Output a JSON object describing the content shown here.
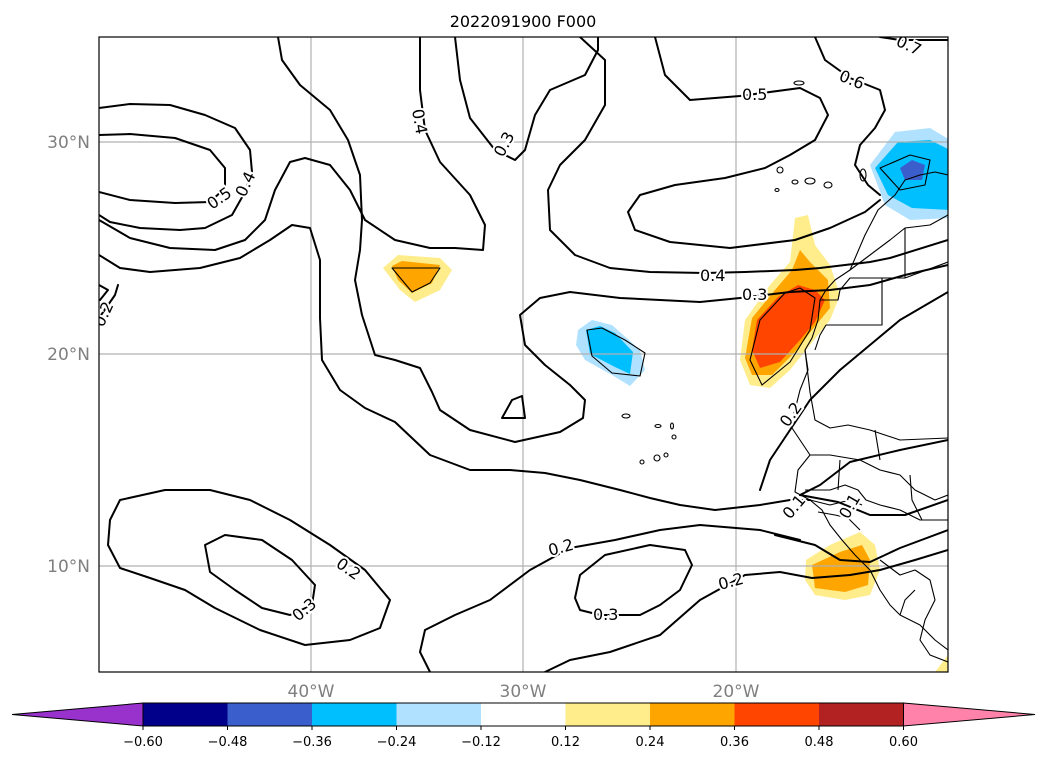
{
  "title": "2022091900 F000",
  "map": {
    "lat_ticks": [
      {
        "value": 30,
        "label": "30°N"
      },
      {
        "value": 20,
        "label": "20°N"
      },
      {
        "value": 10,
        "label": "10°N"
      }
    ],
    "lon_ticks": [
      {
        "value": -40,
        "label": "40°W"
      },
      {
        "value": -30,
        "label": "30°W"
      },
      {
        "value": -20,
        "label": "20°W"
      }
    ],
    "extent": {
      "lon_min": -50,
      "lon_max": -10,
      "lat_min": 5,
      "lat_max": 35
    },
    "contour_labels": [
      "0.7",
      "0.6",
      "0.5",
      "0.5",
      "0.4",
      "0.4",
      "0.3",
      "0.2",
      "0.4",
      "0.3",
      "0.2",
      "0.2",
      "0.2",
      "0.3",
      "0.2",
      "0.3",
      "0.2",
      "0.1",
      "0.1"
    ]
  },
  "colorbar": {
    "ticks": [
      "−0.60",
      "−0.48",
      "−0.36",
      "−0.24",
      "−0.12",
      "0.12",
      "0.24",
      "0.36",
      "0.48",
      "0.60"
    ],
    "colors": [
      "#9932cc",
      "#00008b",
      "#3a5fcd",
      "#00bfff",
      "#b0e2ff",
      "#ffffff",
      "#ffec8b",
      "#ffa500",
      "#ff4500",
      "#b22222",
      "#ff82ab"
    ],
    "extend": "both"
  }
}
